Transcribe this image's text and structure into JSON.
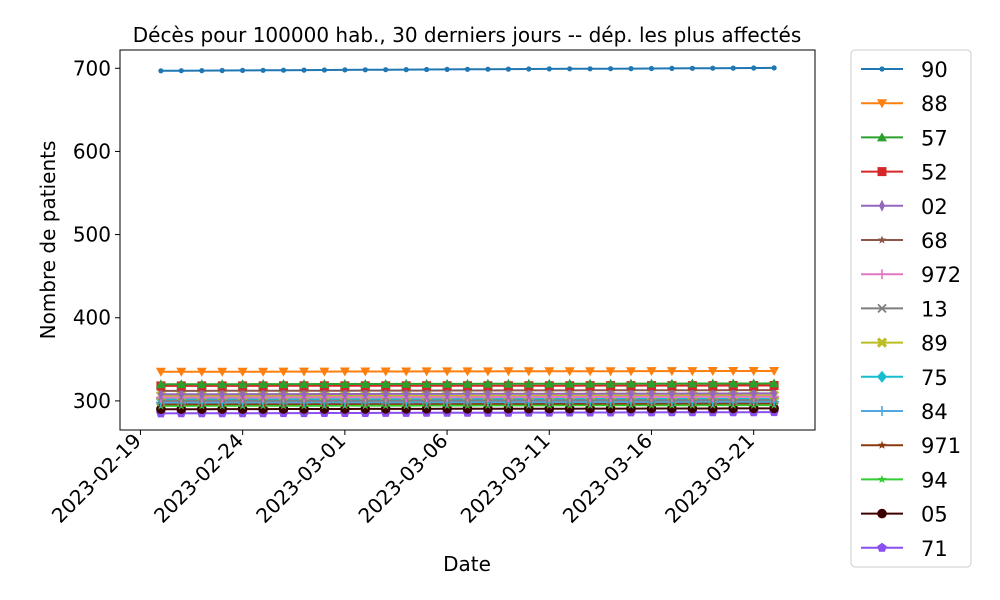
{
  "chart_data": {
    "type": "line",
    "title": "Décès pour 100000 hab., 30 derniers jours -- dép. les plus affectés",
    "xlabel": "Date",
    "ylabel": "Nombre de patients",
    "x_start": "2023-02-20",
    "x_end": "2023-03-22",
    "xlim": [
      "2023-02-18",
      "2023-03-24"
    ],
    "ylim": [
      265,
      722
    ],
    "x_ticks": [
      "2023-02-19",
      "2023-02-24",
      "2023-03-01",
      "2023-03-06",
      "2023-03-11",
      "2023-03-16",
      "2023-03-21"
    ],
    "y_ticks": [
      300,
      400,
      500,
      600,
      700
    ],
    "grid": false,
    "legend_position": "outside-right",
    "series": [
      {
        "name": "90",
        "color": "#1f77b4",
        "marker": "point",
        "start": 697,
        "end": 700.5
      },
      {
        "name": "88",
        "color": "#ff7f0e",
        "marker": "triangle-down",
        "start": 335,
        "end": 336
      },
      {
        "name": "57",
        "color": "#2ca02c",
        "marker": "triangle-up",
        "start": 320,
        "end": 321
      },
      {
        "name": "52",
        "color": "#d62728",
        "marker": "square",
        "start": 318,
        "end": 318.5
      },
      {
        "name": "02",
        "color": "#9467bd",
        "marker": "thin-diamond",
        "start": 308,
        "end": 309
      },
      {
        "name": "68",
        "color": "#8c564b",
        "marker": "star",
        "start": 312,
        "end": 313
      },
      {
        "name": "972",
        "color": "#e377c2",
        "marker": "plus",
        "start": 304,
        "end": 305
      },
      {
        "name": "13",
        "color": "#7f7f7f",
        "marker": "x",
        "start": 300,
        "end": 301
      },
      {
        "name": "89",
        "color": "#bcbd22",
        "marker": "x-filled",
        "start": 306,
        "end": 306.5
      },
      {
        "name": "75",
        "color": "#17becf",
        "marker": "diamond",
        "start": 302,
        "end": 302.5
      },
      {
        "name": "84",
        "color": "#51a8e0",
        "marker": "plus",
        "start": 298,
        "end": 299
      },
      {
        "name": "971",
        "color": "#8b3a0f",
        "marker": "star",
        "start": 296,
        "end": 297
      },
      {
        "name": "94",
        "color": "#33cc33",
        "marker": "star",
        "start": 294,
        "end": 295
      },
      {
        "name": "05",
        "color": "#3d0000",
        "marker": "circle",
        "start": 290,
        "end": 291
      },
      {
        "name": "71",
        "color": "#8a4ff0",
        "marker": "pentagon",
        "start": 285,
        "end": 286.5
      }
    ]
  }
}
